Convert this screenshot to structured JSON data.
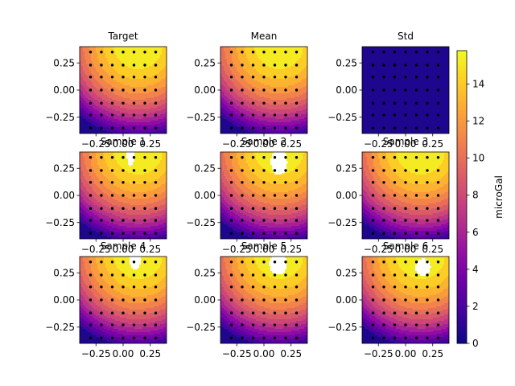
{
  "chart_data": {
    "type": "heatmap",
    "colormap": "plasma",
    "panels": [
      {
        "title": "Target",
        "field": "mean",
        "hole": null
      },
      {
        "title": "Mean",
        "field": "mean",
        "hole": null
      },
      {
        "title": "Std",
        "field": "std",
        "hole": null
      },
      {
        "title": "Sample 1",
        "field": "mean",
        "hole": {
          "cx": 0.07,
          "cy": 0.37,
          "rx": 0.035,
          "ry": 0.1
        }
      },
      {
        "title": "Sample 2",
        "field": "mean",
        "hole": {
          "cx": 0.14,
          "cy": 0.31,
          "rx": 0.075,
          "ry": 0.12
        }
      },
      {
        "title": "Sample 3",
        "field": "mean",
        "hole": null
      },
      {
        "title": "Sample 4",
        "field": "mean",
        "hole": {
          "cx": 0.11,
          "cy": 0.36,
          "rx": 0.05,
          "ry": 0.08
        }
      },
      {
        "title": "Sample 5",
        "field": "mean",
        "hole": {
          "cx": 0.13,
          "cy": 0.33,
          "rx": 0.08,
          "ry": 0.1
        }
      },
      {
        "title": "Sample 6",
        "field": "mean",
        "hole": {
          "cx": 0.16,
          "cy": 0.3,
          "rx": 0.07,
          "ry": 0.08
        }
      }
    ],
    "x_range": [
      -0.4,
      0.4
    ],
    "y_range": [
      -0.4,
      0.4
    ],
    "x_ticks": [
      -0.25,
      0.0,
      0.25
    ],
    "x_tick_labels": [
      "−0.25",
      "0.00",
      "0.25"
    ],
    "y_ticks": [
      -0.25,
      0.0,
      0.25
    ],
    "y_tick_labels": [
      "−0.25",
      "0.00",
      "0.25"
    ],
    "station_points": {
      "x": [
        -0.3,
        -0.2,
        -0.1,
        0.0,
        0.1,
        0.2,
        0.3
      ],
      "y": [
        -0.35,
        -0.23,
        -0.12,
        0.0,
        0.12,
        0.23,
        0.35
      ]
    },
    "colorbar": {
      "label": "microGal",
      "range": [
        0,
        15.8
      ],
      "ticks": [
        0,
        2,
        4,
        6,
        8,
        10,
        12,
        14
      ],
      "tick_labels": [
        "0",
        "2",
        "4",
        "6",
        "8",
        "10",
        "12",
        "14"
      ]
    },
    "field_model": {
      "mean": {
        "peak": 15.8,
        "peak_x": 0.14,
        "peak_y": 0.42,
        "falloff": 20.5
      },
      "std": {
        "value": 0.3
      }
    },
    "contour_levels": 15,
    "grid": false,
    "legend": "none"
  }
}
